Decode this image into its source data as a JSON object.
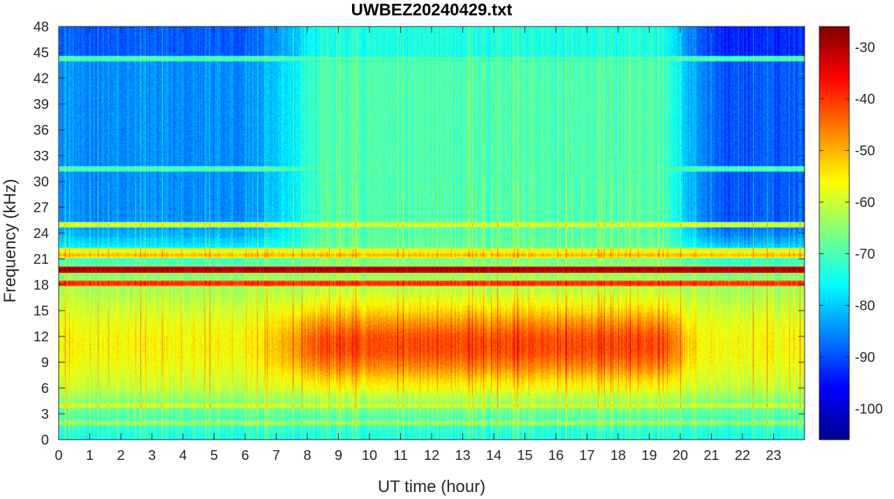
{
  "chart_data": {
    "type": "heatmap",
    "title": "UWBEZ20240429.txt",
    "xlabel": "UT time (hour)",
    "ylabel": "Frequency (kHz)",
    "xlim": [
      0,
      24
    ],
    "ylim": [
      0,
      48
    ],
    "x_ticks": [
      0,
      1,
      2,
      3,
      4,
      5,
      6,
      7,
      8,
      9,
      10,
      11,
      12,
      13,
      14,
      15,
      16,
      17,
      18,
      19,
      20,
      21,
      22,
      23
    ],
    "y_ticks": [
      0,
      3,
      6,
      9,
      12,
      15,
      18,
      21,
      24,
      27,
      30,
      33,
      36,
      39,
      42,
      45,
      48
    ],
    "colorbar": {
      "colormap": "jet",
      "range": [
        -106,
        -26
      ],
      "ticks": [
        -30,
        -40,
        -50,
        -60,
        -70,
        -80,
        -90,
        -100
      ]
    },
    "grid": false,
    "features": {
      "narrowband_lines_khz": [
        {
          "freq": 19.8,
          "level_db": -28
        },
        {
          "freq": 18.2,
          "level_db": -38
        },
        {
          "freq": 21.5,
          "level_db": -50
        },
        {
          "freq": 22.0,
          "level_db": -56
        },
        {
          "freq": 25.0,
          "level_db": -58
        },
        {
          "freq": 44.3,
          "level_db": -68
        },
        {
          "freq": 31.5,
          "level_db": -68
        },
        {
          "freq": 4.0,
          "level_db": -58
        },
        {
          "freq": 2.0,
          "level_db": -62
        }
      ],
      "daytime_band": {
        "t_start_hour": 8,
        "t_end_hour": 20,
        "f_low_khz": 5,
        "f_high_khz": 16,
        "peak_level_db": -44
      },
      "night_high_freq_level_db": -85,
      "day_high_freq_level_db": -70
    }
  }
}
